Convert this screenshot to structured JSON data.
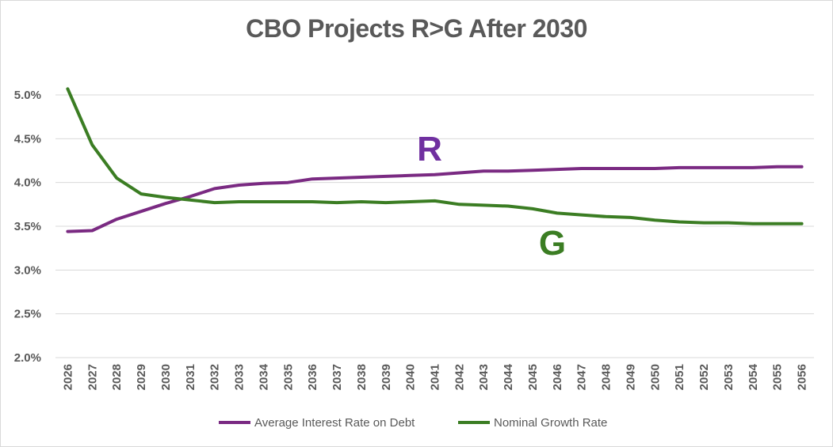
{
  "chart_data": {
    "type": "line",
    "title": "CBO Projects R>G After 2030",
    "xlabel": "",
    "ylabel": "",
    "ylim": [
      2.0,
      5.0
    ],
    "yticks": [
      "2.0%",
      "2.5%",
      "3.0%",
      "3.5%",
      "4.0%",
      "4.5%",
      "5.0%"
    ],
    "ytick_values": [
      2.0,
      2.5,
      3.0,
      3.5,
      4.0,
      4.5,
      5.0
    ],
    "grid": true,
    "legend_position": "bottom",
    "categories": [
      "2026",
      "2027",
      "2028",
      "2029",
      "2030",
      "2031",
      "2032",
      "2033",
      "2034",
      "2035",
      "2036",
      "2037",
      "2038",
      "2039",
      "2040",
      "2041",
      "2042",
      "2043",
      "2044",
      "2045",
      "2046",
      "2047",
      "2048",
      "2049",
      "2050",
      "2051",
      "2052",
      "2053",
      "2054",
      "2055",
      "2056"
    ],
    "series": [
      {
        "name": "Average Interest Rate on Debt",
        "color": "#7a2a82",
        "values": [
          3.44,
          3.45,
          3.58,
          3.67,
          3.76,
          3.84,
          3.93,
          3.97,
          3.99,
          4.0,
          4.04,
          4.05,
          4.06,
          4.07,
          4.08,
          4.09,
          4.11,
          4.13,
          4.13,
          4.14,
          4.15,
          4.16,
          4.16,
          4.16,
          4.16,
          4.17,
          4.17,
          4.17,
          4.17,
          4.18,
          4.18
        ]
      },
      {
        "name": "Nominal Growth Rate",
        "color": "#3b7d23",
        "values": [
          5.07,
          4.43,
          4.05,
          3.87,
          3.83,
          3.8,
          3.77,
          3.78,
          3.78,
          3.78,
          3.78,
          3.77,
          3.78,
          3.77,
          3.78,
          3.79,
          3.75,
          3.74,
          3.73,
          3.7,
          3.65,
          3.63,
          3.61,
          3.6,
          3.57,
          3.55,
          3.54,
          3.54,
          3.53,
          3.53,
          3.53
        ]
      }
    ],
    "annotations": [
      {
        "text": "R",
        "color": "#7030a0",
        "near_series": 0
      },
      {
        "text": "G",
        "color": "#3b7d23",
        "near_series": 1
      }
    ]
  }
}
